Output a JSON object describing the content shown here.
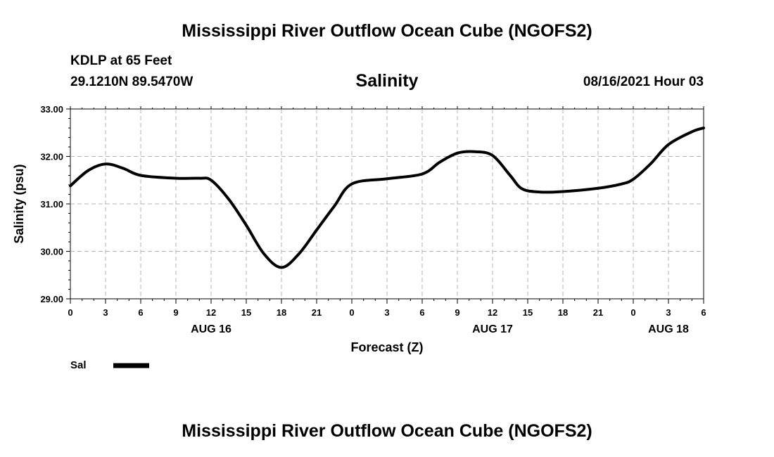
{
  "header": {
    "title": "Mississippi River Outflow Ocean Cube (NGOFS2)",
    "station": "KDLP at 65 Feet",
    "coords": "29.1210N  89.5470W",
    "datetime": "08/16/2021 Hour 03",
    "footer_title": "Mississippi River Outflow Ocean Cube (NGOFS2)"
  },
  "chart_data": {
    "type": "line",
    "title": "Salinity",
    "xlabel": "Forecast (Z)",
    "ylabel": "Salinity (psu)",
    "ylim": [
      29,
      33
    ],
    "y_ticks": [
      "29.00",
      "30.00",
      "31.00",
      "32.00",
      "33.00"
    ],
    "xlim": [
      0,
      54
    ],
    "x_tick_labels": [
      "0",
      "3",
      "6",
      "9",
      "12",
      "15",
      "18",
      "21",
      "0",
      "3",
      "6",
      "9",
      "12",
      "15",
      "18",
      "21",
      "0",
      "3",
      "6"
    ],
    "date_labels": [
      {
        "label": "AUG 16",
        "hour": 12
      },
      {
        "label": "AUG 17",
        "hour": 36
      },
      {
        "label": "AUG 18",
        "hour": 51
      }
    ],
    "grid": true,
    "legend": "bottom-left",
    "series": [
      {
        "name": "Sal",
        "color": "#000000",
        "x": [
          0,
          1.5,
          3,
          4.5,
          6,
          9,
          11,
          12,
          13.5,
          15,
          16.5,
          18,
          19.5,
          21,
          22.5,
          24,
          27,
          30,
          31.5,
          33,
          34.5,
          36,
          37.5,
          38.5,
          40,
          42,
          45,
          47,
          48,
          49.5,
          51,
          53,
          54
        ],
        "y": [
          31.38,
          31.7,
          31.84,
          31.75,
          31.6,
          31.54,
          31.54,
          31.5,
          31.1,
          30.55,
          29.95,
          29.66,
          29.95,
          30.45,
          30.95,
          31.42,
          31.53,
          31.63,
          31.88,
          32.07,
          32.1,
          32.02,
          31.6,
          31.32,
          31.25,
          31.26,
          31.33,
          31.42,
          31.52,
          31.85,
          32.25,
          32.52,
          32.6
        ]
      }
    ]
  }
}
